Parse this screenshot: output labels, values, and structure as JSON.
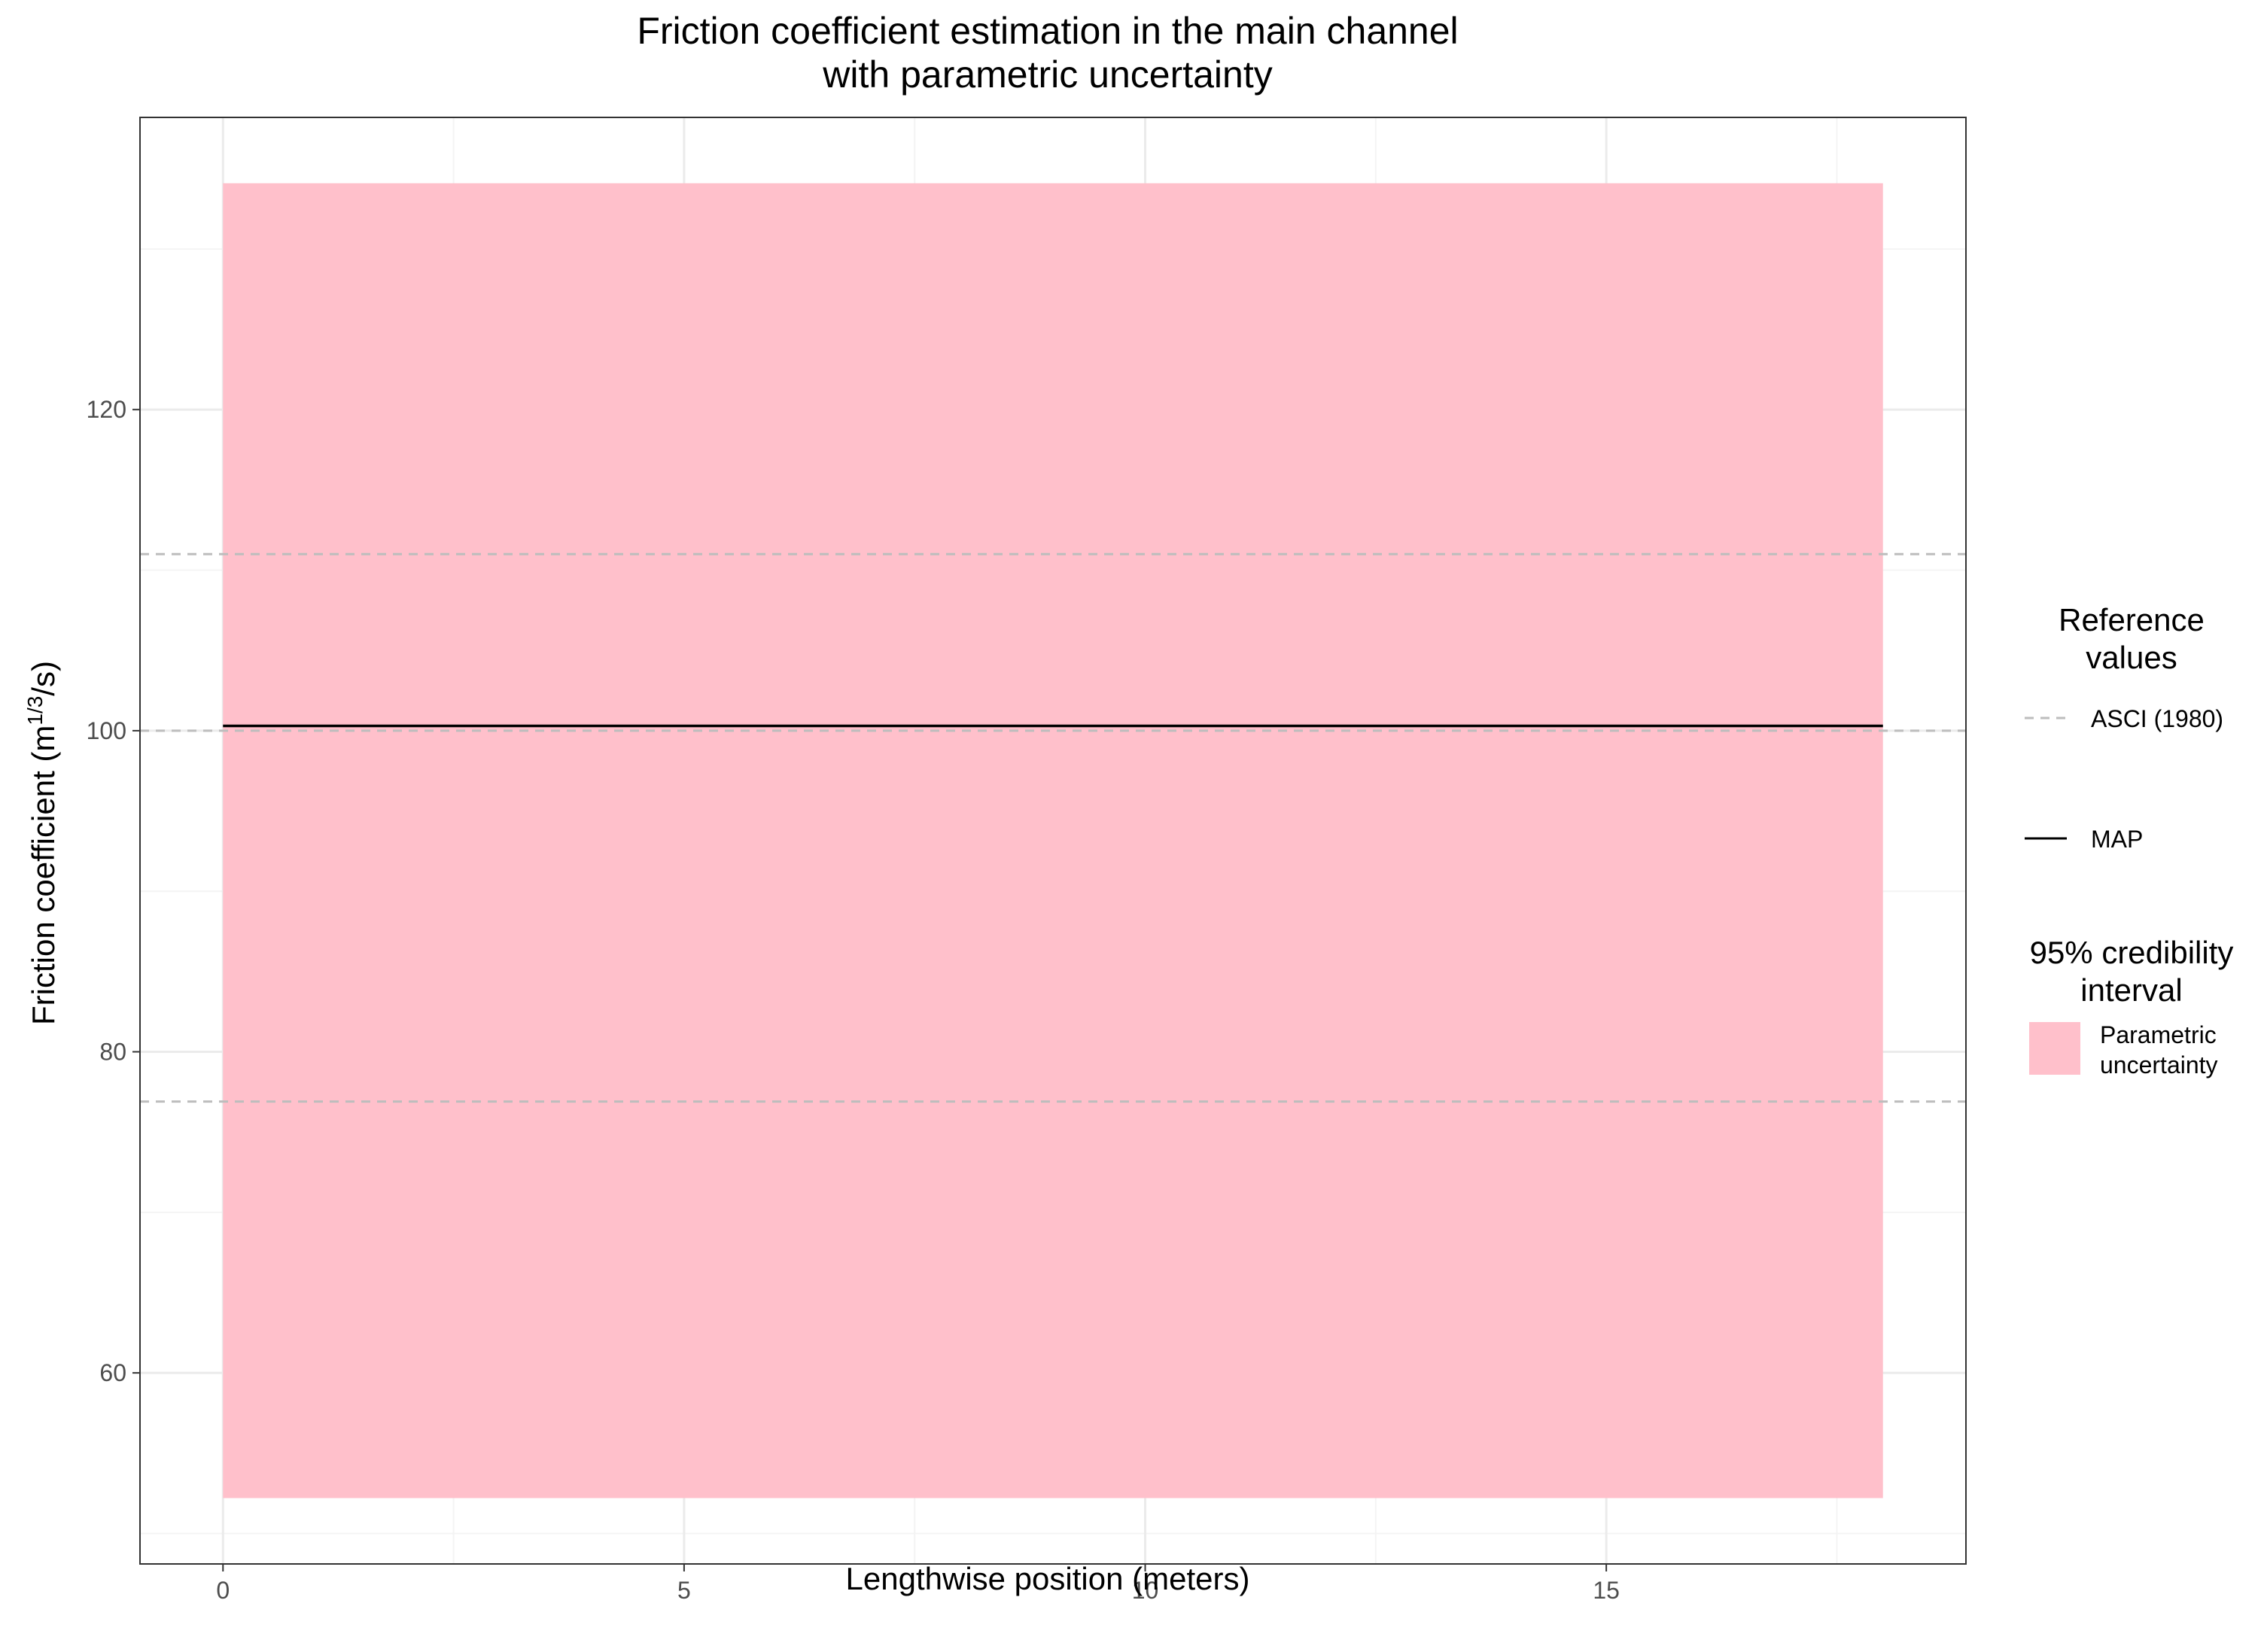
{
  "chart_data": {
    "type": "line",
    "title_lines": [
      "Friction coefficient estimation in the main channel",
      "with parametric uncertainty"
    ],
    "xlabel": "Lengthwise position (meters)",
    "ylabel_prefix": "Friction coefficient (m",
    "ylabel_sup": "1/3",
    "ylabel_suffix": "/s)",
    "xlim": [
      -0.9,
      18.9
    ],
    "ylim": [
      48.1,
      138.2
    ],
    "x_ticks": [
      0,
      5,
      10,
      15
    ],
    "x_tick_labels": [
      "0",
      "5",
      "10",
      "15"
    ],
    "y_ticks": [
      60,
      80,
      100,
      120
    ],
    "y_tick_labels": [
      "60",
      "80",
      "100",
      "120"
    ],
    "grid": true,
    "legend_position": "right",
    "ribbon": {
      "name": "Parametric uncertainty",
      "x": [
        0,
        18
      ],
      "lower": [
        52.2,
        52.2
      ],
      "upper": [
        134.1,
        134.1
      ],
      "color": "#ffc0cb"
    },
    "series": [
      {
        "name": "MAP",
        "x": [
          0,
          18
        ],
        "y": [
          100.3,
          100.3
        ],
        "color": "#000000",
        "style": "solid"
      }
    ],
    "reference_lines": [
      {
        "name": "ASCI (1980)",
        "values": [
          111.0,
          100.0,
          76.9
        ],
        "color": "#bdbdbd",
        "style": "dashed"
      }
    ],
    "legend": {
      "reference_title_lines": [
        "Reference",
        "values"
      ],
      "reference_items": [
        {
          "label": "ASCI (1980)",
          "style": "dashed",
          "color": "#bdbdbd"
        },
        {
          "label": "MAP",
          "style": "solid",
          "color": "#000000"
        }
      ],
      "interval_title_lines": [
        "95% credibility",
        "interval"
      ],
      "interval_items": [
        {
          "label_lines": [
            "Parametric",
            "uncertainty"
          ],
          "color": "#ffc0cb"
        }
      ]
    },
    "colors": {
      "panel_border": "#333333",
      "grid_major": "#ebebeb",
      "grid_minor": "#f4f4f4",
      "tick": "#333333"
    }
  }
}
